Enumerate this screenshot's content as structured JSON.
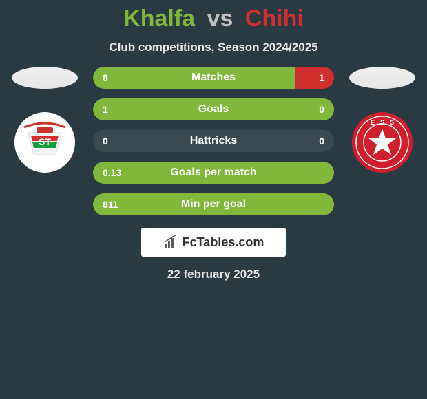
{
  "title": {
    "player1": "Khalfa",
    "vs": "vs",
    "player2": "Chihi"
  },
  "subtitle": "Club competitions, Season 2024/2025",
  "colors": {
    "player1": "#7fb83a",
    "player2": "#d12e2e",
    "bar_bg_neutral": "#3a4a52",
    "background": "#2a3a42",
    "text_light": "#e8e8e8"
  },
  "stats": [
    {
      "label": "Matches",
      "left_val": "8",
      "right_val": "1",
      "left_pct": 84,
      "right_pct": 16
    },
    {
      "label": "Goals",
      "left_val": "1",
      "right_val": "0",
      "left_pct": 100,
      "right_pct": 0
    },
    {
      "label": "Hattricks",
      "left_val": "0",
      "right_val": "0",
      "left_pct": 0,
      "right_pct": 0
    },
    {
      "label": "Goals per match",
      "left_val": "0.13",
      "right_val": "",
      "left_pct": 100,
      "right_pct": 0
    },
    {
      "label": "Min per goal",
      "left_val": "811",
      "right_val": "",
      "left_pct": 100,
      "right_pct": 0
    }
  ],
  "team1_logo": {
    "bg": "#ffffff",
    "stripes": [
      "#d12e2e",
      "#1a9e3a"
    ],
    "banner_color": "#d12e2e",
    "banner_text": "ST"
  },
  "team2_logo": {
    "bg": "#cf1f2d",
    "ring": "#ffffff",
    "star": "#ffffff",
    "text": "E · S · S"
  },
  "brand": {
    "text": "FcTables.com"
  },
  "date": "22 february 2025",
  "fonts": {
    "title_size": 34,
    "subtitle_size": 17,
    "stat_label_size": 16,
    "stat_val_size": 14
  }
}
